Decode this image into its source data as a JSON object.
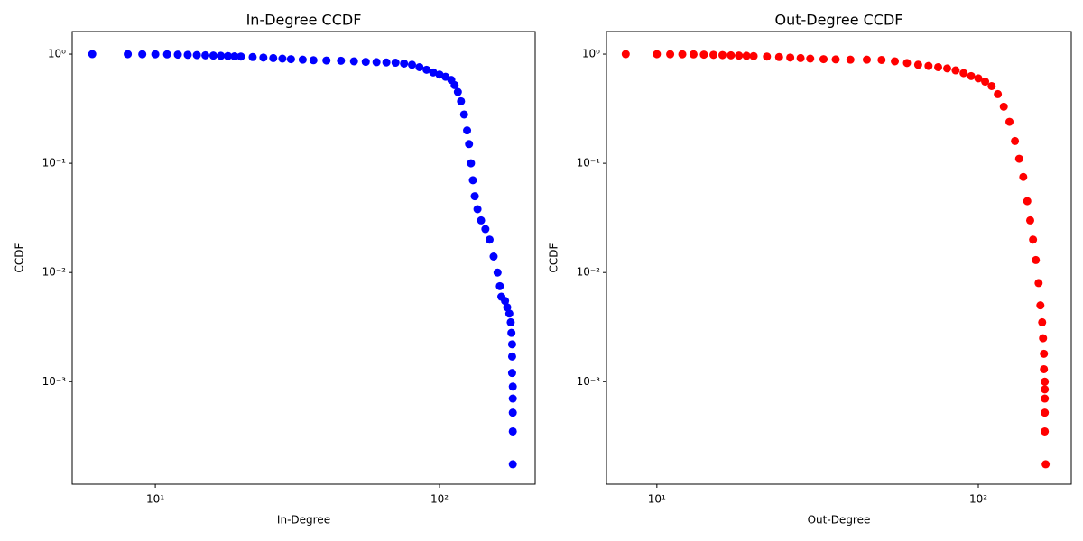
{
  "chart_data": [
    {
      "type": "scatter",
      "title": "In-Degree CCDF",
      "xlabel": "In-Degree",
      "ylabel": "CCDF",
      "color": "#0000ff",
      "xscale": "log",
      "yscale": "log",
      "xlim": [
        5.1,
        217
      ],
      "ylim": [
        0.000115,
        1.61
      ],
      "xticks": [
        {
          "value": 10,
          "label": "10¹"
        },
        {
          "value": 100,
          "label": "10²"
        }
      ],
      "yticks": [
        {
          "value": 0.001,
          "label": "10⁻³"
        },
        {
          "value": 0.01,
          "label": "10⁻²"
        },
        {
          "value": 0.1,
          "label": "10⁻¹"
        },
        {
          "value": 1,
          "label": "10⁰"
        }
      ],
      "x": [
        6,
        8,
        9,
        10,
        11,
        12,
        13,
        14,
        15,
        16,
        17,
        18,
        19,
        20,
        22,
        24,
        26,
        28,
        30,
        33,
        36,
        40,
        45,
        50,
        55,
        60,
        65,
        70,
        75,
        80,
        85,
        90,
        95,
        100,
        105,
        110,
        113,
        116,
        119,
        122,
        125,
        127,
        129,
        131,
        133,
        136,
        140,
        145,
        150,
        155,
        160,
        163,
        165,
        170,
        173,
        176,
        178,
        179,
        180,
        180,
        180,
        181,
        181,
        181,
        181,
        181
      ],
      "values": [
        1.0,
        0.999,
        0.998,
        0.997,
        0.995,
        0.99,
        0.985,
        0.98,
        0.975,
        0.97,
        0.965,
        0.96,
        0.955,
        0.95,
        0.94,
        0.93,
        0.92,
        0.91,
        0.9,
        0.89,
        0.88,
        0.875,
        0.87,
        0.86,
        0.85,
        0.845,
        0.84,
        0.835,
        0.82,
        0.8,
        0.76,
        0.72,
        0.68,
        0.65,
        0.62,
        0.58,
        0.52,
        0.45,
        0.37,
        0.28,
        0.2,
        0.15,
        0.1,
        0.07,
        0.05,
        0.038,
        0.03,
        0.025,
        0.02,
        0.014,
        0.01,
        0.0075,
        0.006,
        0.0055,
        0.0048,
        0.0042,
        0.0035,
        0.0028,
        0.0022,
        0.0017,
        0.0012,
        0.0009,
        0.0007,
        0.00052,
        0.00035,
        0.000175
      ]
    },
    {
      "type": "scatter",
      "title": "Out-Degree CCDF",
      "xlabel": "Out-Degree",
      "ylabel": "CCDF",
      "color": "#ff0000",
      "xscale": "log",
      "yscale": "log",
      "xlim": [
        6.97,
        194.6
      ],
      "ylim": [
        0.000115,
        1.61
      ],
      "xticks": [
        {
          "value": 10,
          "label": "10¹"
        },
        {
          "value": 100,
          "label": "10²"
        }
      ],
      "yticks": [
        {
          "value": 0.001,
          "label": "10⁻³"
        },
        {
          "value": 0.01,
          "label": "10⁻²"
        },
        {
          "value": 0.1,
          "label": "10⁻¹"
        },
        {
          "value": 1,
          "label": "10⁰"
        }
      ],
      "x": [
        8,
        10,
        11,
        12,
        13,
        14,
        15,
        16,
        17,
        18,
        19,
        20,
        22,
        24,
        26,
        28,
        30,
        33,
        36,
        40,
        45,
        50,
        55,
        60,
        65,
        70,
        75,
        80,
        85,
        90,
        95,
        100,
        105,
        110,
        115,
        120,
        125,
        130,
        134,
        138,
        142,
        145,
        148,
        151,
        154,
        156,
        158,
        159,
        160,
        160,
        161,
        161,
        161,
        161,
        161,
        162
      ],
      "values": [
        1.0,
        0.999,
        0.998,
        0.997,
        0.995,
        0.99,
        0.985,
        0.98,
        0.975,
        0.97,
        0.965,
        0.96,
        0.95,
        0.94,
        0.93,
        0.92,
        0.91,
        0.9,
        0.895,
        0.89,
        0.89,
        0.885,
        0.86,
        0.83,
        0.8,
        0.78,
        0.76,
        0.74,
        0.71,
        0.67,
        0.63,
        0.6,
        0.56,
        0.51,
        0.43,
        0.33,
        0.24,
        0.16,
        0.11,
        0.075,
        0.045,
        0.03,
        0.02,
        0.013,
        0.008,
        0.005,
        0.0035,
        0.0025,
        0.0018,
        0.0013,
        0.001,
        0.00085,
        0.0007,
        0.00052,
        0.00035,
        0.000175
      ]
    }
  ]
}
